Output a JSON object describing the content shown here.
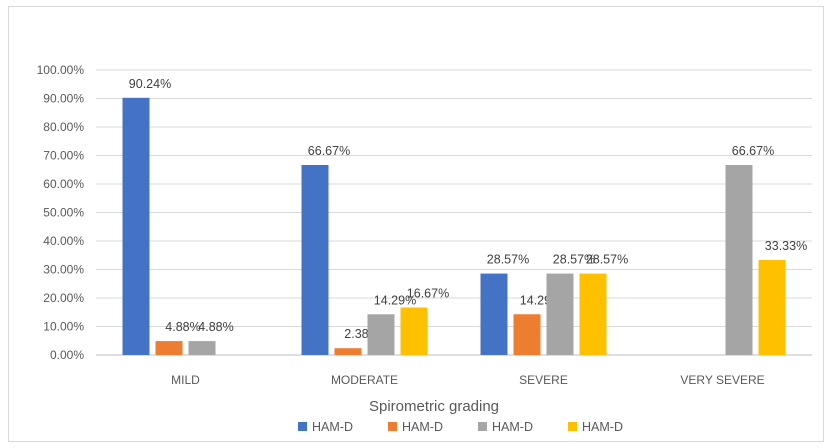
{
  "chart_data": {
    "type": "bar",
    "categories": [
      "MILD",
      "MODERATE",
      "SEVERE",
      "VERY SEVERE"
    ],
    "series": [
      {
        "name": "HAM-D",
        "color": "#4472C4",
        "values": [
          90.24,
          66.67,
          28.57,
          null
        ],
        "labels": [
          "90.24%",
          "66.67%",
          "28.57%",
          ""
        ]
      },
      {
        "name": "HAM-D",
        "color": "#ED7D31",
        "values": [
          4.88,
          2.38,
          14.29,
          null
        ],
        "labels": [
          "4.88%",
          "2.38%",
          "14.29%",
          ""
        ]
      },
      {
        "name": "HAM-D",
        "color": "#A5A5A5",
        "values": [
          4.88,
          14.29,
          28.57,
          66.67
        ],
        "labels": [
          "4.88%",
          "14.29%",
          "28.57%",
          "66.67%"
        ]
      },
      {
        "name": "HAM-D",
        "color": "#FFC000",
        "values": [
          null,
          16.67,
          28.57,
          33.33
        ],
        "labels": [
          "",
          "16.67%",
          "28.57%",
          "33.33%"
        ]
      }
    ],
    "xlabel": "Spirometric grading",
    "ylabel": "",
    "ylim": [
      0,
      100
    ],
    "yticks": [
      "0.00%",
      "10.00%",
      "20.00%",
      "30.00%",
      "40.00%",
      "50.00%",
      "60.00%",
      "70.00%",
      "80.00%",
      "90.00%",
      "100.00%"
    ],
    "grid": true,
    "legend": "bottom"
  }
}
